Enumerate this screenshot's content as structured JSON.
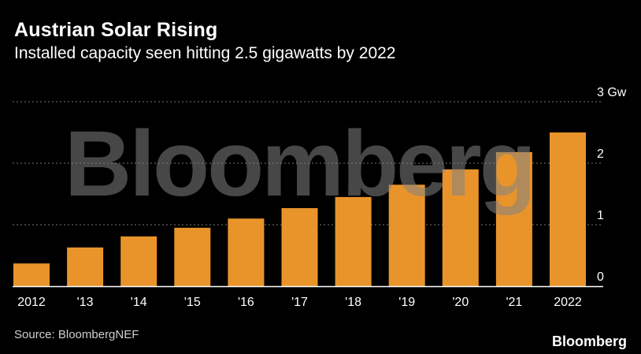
{
  "header": {
    "title": "Austrian Solar Rising",
    "subtitle": "Installed capacity seen hitting 2.5 gigawatts by 2022"
  },
  "footer": {
    "source": "Source: BloombergNEF",
    "brand": "Bloomberg"
  },
  "watermark": "Bloomberg",
  "colors": {
    "background": "#000000",
    "bar": "#e8942a",
    "grid": "#777777",
    "axis": "#ffffff",
    "text": "#ffffff"
  },
  "chart_data": {
    "type": "bar",
    "title": "Austrian Solar Rising",
    "subtitle": "Installed capacity seen hitting 2.5 gigawatts by 2022",
    "categories": [
      "2012",
      "'13",
      "'14",
      "'15",
      "'16",
      "'17",
      "'18",
      "'19",
      "'20",
      "'21",
      "2022"
    ],
    "values": [
      0.37,
      0.63,
      0.81,
      0.95,
      1.1,
      1.27,
      1.45,
      1.65,
      1.9,
      2.18,
      2.5
    ],
    "ylim": [
      0,
      3
    ],
    "yticks": [
      0,
      1,
      2,
      3
    ],
    "ytick_labels": [
      "0",
      "1",
      "2",
      "3 Gw"
    ],
    "yaxis_side": "right",
    "grid": "dotted horizontal",
    "xlabel": "",
    "ylabel": ""
  }
}
